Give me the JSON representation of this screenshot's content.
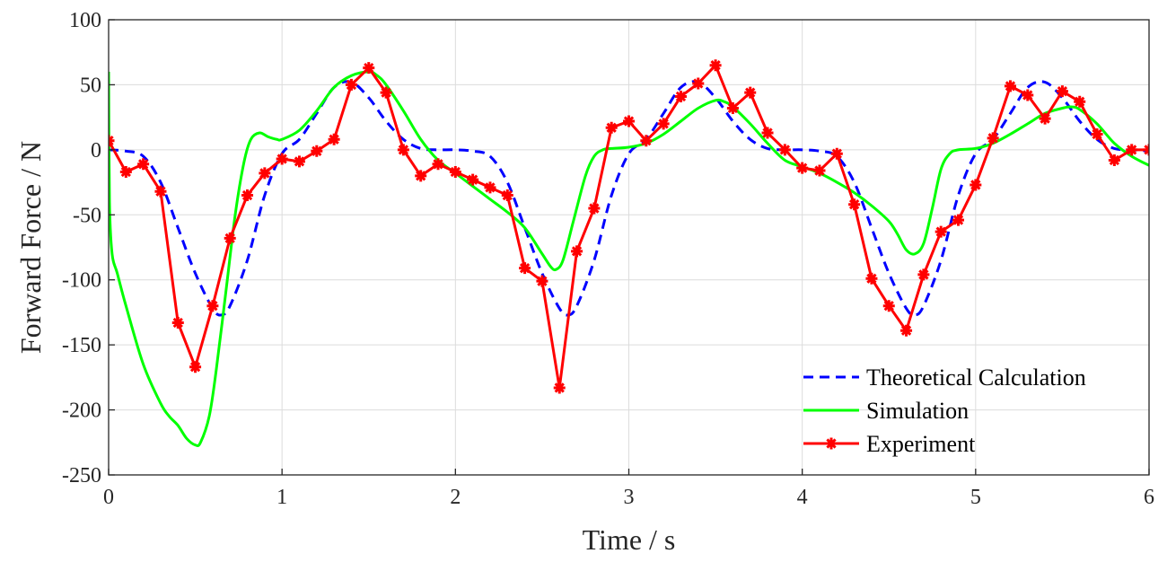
{
  "chart_data": {
    "type": "line",
    "title": "",
    "xlabel": "Time / s",
    "ylabel": "Forward Force / N",
    "xlim": [
      0,
      6
    ],
    "ylim": [
      -250,
      100
    ],
    "xticks": [
      0,
      1,
      2,
      3,
      4,
      5,
      6
    ],
    "yticks": [
      -250,
      -200,
      -150,
      -100,
      -50,
      0,
      50,
      100
    ],
    "grid": true,
    "legend_position": "bottom-right",
    "series": [
      {
        "name": "Theoretical Calculation",
        "color": "#0000ff",
        "style": "dashed",
        "x": [
          0,
          0.1,
          0.2,
          0.3,
          0.4,
          0.5,
          0.6,
          0.65,
          0.7,
          0.8,
          0.9,
          1.0,
          1.1,
          1.2,
          1.3,
          1.4,
          1.5,
          1.6,
          1.7,
          1.8,
          1.9,
          2.0,
          2.1,
          2.2,
          2.3,
          2.4,
          2.5,
          2.6,
          2.65,
          2.7,
          2.8,
          2.9,
          3.0,
          3.1,
          3.2,
          3.3,
          3.4,
          3.5,
          3.6,
          3.7,
          3.8,
          3.9,
          4.0,
          4.1,
          4.2,
          4.3,
          4.4,
          4.5,
          4.6,
          4.65,
          4.7,
          4.8,
          4.9,
          5.0,
          5.1,
          5.2,
          5.3,
          5.4,
          5.5,
          5.6,
          5.7,
          5.8,
          5.9,
          6.0
        ],
        "y": [
          0,
          -1,
          -5,
          -25,
          -60,
          -95,
          -122,
          -127,
          -120,
          -85,
          -35,
          -3,
          8,
          28,
          48,
          52,
          40,
          22,
          8,
          1,
          0,
          0,
          -1,
          -5,
          -25,
          -60,
          -95,
          -122,
          -127,
          -120,
          -85,
          -35,
          -3,
          8,
          28,
          48,
          52,
          40,
          22,
          8,
          1,
          0,
          0,
          -1,
          -5,
          -25,
          -60,
          -95,
          -122,
          -127,
          -120,
          -85,
          -35,
          -3,
          8,
          28,
          48,
          52,
          40,
          22,
          8,
          1,
          0,
          -1
        ]
      },
      {
        "name": "Simulation",
        "color": "#00ff00",
        "style": "solid",
        "x": [
          0,
          0.005,
          0.02,
          0.05,
          0.1,
          0.2,
          0.3,
          0.35,
          0.4,
          0.45,
          0.5,
          0.53,
          0.58,
          0.62,
          0.68,
          0.73,
          0.78,
          0.82,
          0.87,
          0.92,
          0.97,
          1.0,
          1.1,
          1.2,
          1.3,
          1.4,
          1.5,
          1.55,
          1.6,
          1.7,
          1.8,
          1.9,
          2.0,
          2.1,
          2.2,
          2.3,
          2.4,
          2.5,
          2.55,
          2.58,
          2.62,
          2.68,
          2.75,
          2.8,
          2.85,
          2.9,
          3.0,
          3.1,
          3.2,
          3.3,
          3.4,
          3.5,
          3.55,
          3.6,
          3.7,
          3.8,
          3.9,
          4.0,
          4.1,
          4.2,
          4.3,
          4.4,
          4.5,
          4.55,
          4.6,
          4.65,
          4.7,
          4.75,
          4.8,
          4.85,
          4.9,
          5.0,
          5.1,
          5.2,
          5.3,
          5.4,
          5.5,
          5.55,
          5.6,
          5.7,
          5.8,
          5.9,
          6.0
        ],
        "y": [
          60,
          -40,
          -80,
          -95,
          -120,
          -165,
          -195,
          -205,
          -212,
          -222,
          -227,
          -225,
          -205,
          -170,
          -105,
          -50,
          -10,
          8,
          13,
          10,
          8,
          8,
          15,
          30,
          48,
          57,
          60,
          57,
          50,
          30,
          8,
          -8,
          -18,
          -28,
          -38,
          -48,
          -60,
          -80,
          -90,
          -92,
          -85,
          -55,
          -20,
          -5,
          0,
          1,
          2,
          5,
          12,
          22,
          32,
          38,
          37,
          33,
          20,
          5,
          -8,
          -13,
          -18,
          -25,
          -33,
          -43,
          -55,
          -65,
          -77,
          -80,
          -72,
          -45,
          -15,
          -3,
          0,
          1,
          5,
          12,
          20,
          28,
          32,
          33,
          31,
          20,
          5,
          -5,
          -12
        ]
      },
      {
        "name": "Experiment",
        "color": "#ff0000",
        "style": "solid-markers",
        "x": [
          0,
          0.1,
          0.2,
          0.3,
          0.4,
          0.5,
          0.6,
          0.7,
          0.8,
          0.9,
          1.0,
          1.1,
          1.2,
          1.3,
          1.4,
          1.5,
          1.6,
          1.7,
          1.8,
          1.9,
          2.0,
          2.1,
          2.2,
          2.3,
          2.4,
          2.5,
          2.6,
          2.7,
          2.8,
          2.9,
          3.0,
          3.1,
          3.2,
          3.3,
          3.4,
          3.5,
          3.6,
          3.7,
          3.8,
          3.9,
          4.0,
          4.1,
          4.2,
          4.3,
          4.4,
          4.5,
          4.6,
          4.7,
          4.8,
          4.9,
          5.0,
          5.1,
          5.2,
          5.3,
          5.4,
          5.5,
          5.6,
          5.7,
          5.8,
          5.9,
          6.0
        ],
        "y": [
          7,
          -17,
          -11,
          -32,
          -133,
          -167,
          -120,
          -68,
          -35,
          -18,
          -7,
          -9,
          -1,
          8,
          50,
          63,
          44,
          0,
          -20,
          -11,
          -17,
          -23,
          -29,
          -35,
          -91,
          -101,
          -183,
          -78,
          -45,
          17,
          22,
          7,
          20,
          41,
          51,
          65,
          32,
          44,
          13,
          0,
          -14,
          -16,
          -3,
          -42,
          -99,
          -120,
          -139,
          -96,
          -63,
          -54,
          -27,
          9,
          49,
          42,
          24,
          45,
          37,
          12,
          -8,
          0,
          0
        ]
      }
    ]
  }
}
